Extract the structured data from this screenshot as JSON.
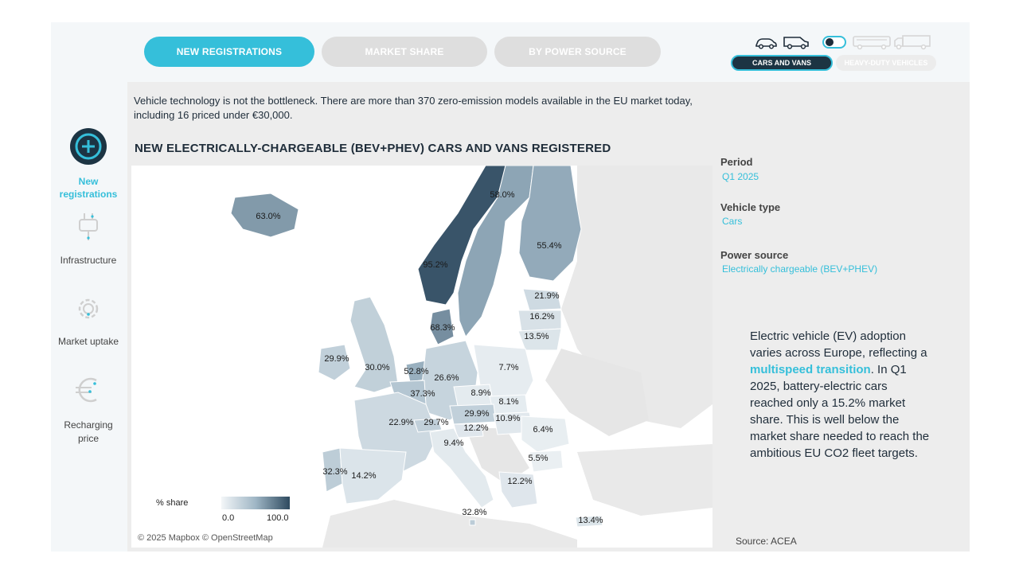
{
  "tabs": [
    {
      "label": "NEW REGISTRATIONS",
      "active": true
    },
    {
      "label": "MARKET SHARE",
      "active": false
    },
    {
      "label": "BY POWER SOURCE",
      "active": false
    }
  ],
  "vehicle_toggle": {
    "left_label": "CARS AND VANS",
    "right_label": "HEAVY-DUTY VEHICLES",
    "selected": "CARS AND VANS",
    "left_icons": [
      "car-icon",
      "van-icon"
    ],
    "right_icons": [
      "bus-icon",
      "truck-icon"
    ]
  },
  "sidebar": {
    "items": [
      {
        "label": "New registrations",
        "icon": "plus-circle-icon",
        "active": true
      },
      {
        "label": "Infrastructure",
        "icon": "plug-icon",
        "active": false
      },
      {
        "label": "Market uptake",
        "icon": "gear-icon",
        "active": false
      },
      {
        "label": "Recharging price",
        "icon": "euro-icon",
        "active": false
      }
    ]
  },
  "intro_text": "Vehicle technology is not the bottleneck. There are more than 370 zero-emission models available in the EU market today, including 16 priced under €30,000.",
  "map": {
    "title": "NEW ELECTRICALLY-CHARGEABLE (BEV+PHEV) CARS AND VANS REGISTERED",
    "attribution": "© 2025 Mapbox © OpenStreetMap",
    "legend": {
      "title": "% share",
      "min": "0.0",
      "max": "100.0",
      "color_low": "#f3f6f8",
      "color_high": "#2e4a5f"
    },
    "regions": [
      {
        "name": "Iceland",
        "value": 63.0,
        "label": "63.0%"
      },
      {
        "name": "Norway",
        "value": 95.2,
        "label": "95.2%"
      },
      {
        "name": "Sweden",
        "value": 58.0,
        "label": "58.0%"
      },
      {
        "name": "Finland",
        "value": 55.4,
        "label": "55.4%"
      },
      {
        "name": "Estonia",
        "value": 21.9,
        "label": "21.9%"
      },
      {
        "name": "Latvia",
        "value": 16.2,
        "label": "16.2%"
      },
      {
        "name": "Lithuania",
        "value": 13.5,
        "label": "13.5%"
      },
      {
        "name": "Denmark",
        "value": 68.3,
        "label": "68.3%"
      },
      {
        "name": "Ireland",
        "value": 29.9,
        "label": "29.9%"
      },
      {
        "name": "United Kingdom",
        "value": 30.0,
        "label": "30.0%"
      },
      {
        "name": "Netherlands",
        "value": 52.8,
        "label": "52.8%"
      },
      {
        "name": "Germany",
        "value": 26.6,
        "label": "26.6%"
      },
      {
        "name": "Poland",
        "value": 7.7,
        "label": "7.7%"
      },
      {
        "name": "Belgium / Luxembourg",
        "value": 37.3,
        "label": "37.3%"
      },
      {
        "name": "Czechia",
        "value": 8.9,
        "label": "8.9%"
      },
      {
        "name": "Slovakia",
        "value": 8.1,
        "label": "8.1%"
      },
      {
        "name": "Austria",
        "value": 29.9,
        "label": "29.9%"
      },
      {
        "name": "Hungary",
        "value": 10.9,
        "label": "10.9%"
      },
      {
        "name": "France",
        "value": 22.9,
        "label": "22.9%"
      },
      {
        "name": "Switzerland",
        "value": 29.7,
        "label": "29.7%"
      },
      {
        "name": "Slovenia",
        "value": 12.2,
        "label": "12.2%"
      },
      {
        "name": "Romania",
        "value": 6.4,
        "label": "6.4%"
      },
      {
        "name": "Italy",
        "value": 9.4,
        "label": "9.4%"
      },
      {
        "name": "Bulgaria",
        "value": 5.5,
        "label": "5.5%"
      },
      {
        "name": "Portugal",
        "value": 32.3,
        "label": "32.3%"
      },
      {
        "name": "Spain",
        "value": 14.2,
        "label": "14.2%"
      },
      {
        "name": "Greece",
        "value": 12.2,
        "label": "12.2%"
      },
      {
        "name": "Malta",
        "value": 32.8,
        "label": "32.8%"
      },
      {
        "name": "Cyprus",
        "value": 13.4,
        "label": "13.4%"
      }
    ]
  },
  "filters": [
    {
      "label": "Period",
      "value": "Q1 2025"
    },
    {
      "label": "Vehicle type",
      "value": "Cars"
    },
    {
      "label": "Power source",
      "value": "Electrically chargeable (BEV+PHEV)"
    }
  ],
  "story": {
    "part1": "Electric vehicle (EV) adoption varies across Europe, reflecting a ",
    "highlight": "multispeed transition",
    "part2": ". In Q1 2025, battery-electric cars reached only a 15.2% market share. This is well below the market share needed to reach the ambitious EU CO2 fleet targets."
  },
  "source": "Source: ACEA",
  "colors": {
    "accent": "#35bfda",
    "dark": "#1c3443"
  }
}
